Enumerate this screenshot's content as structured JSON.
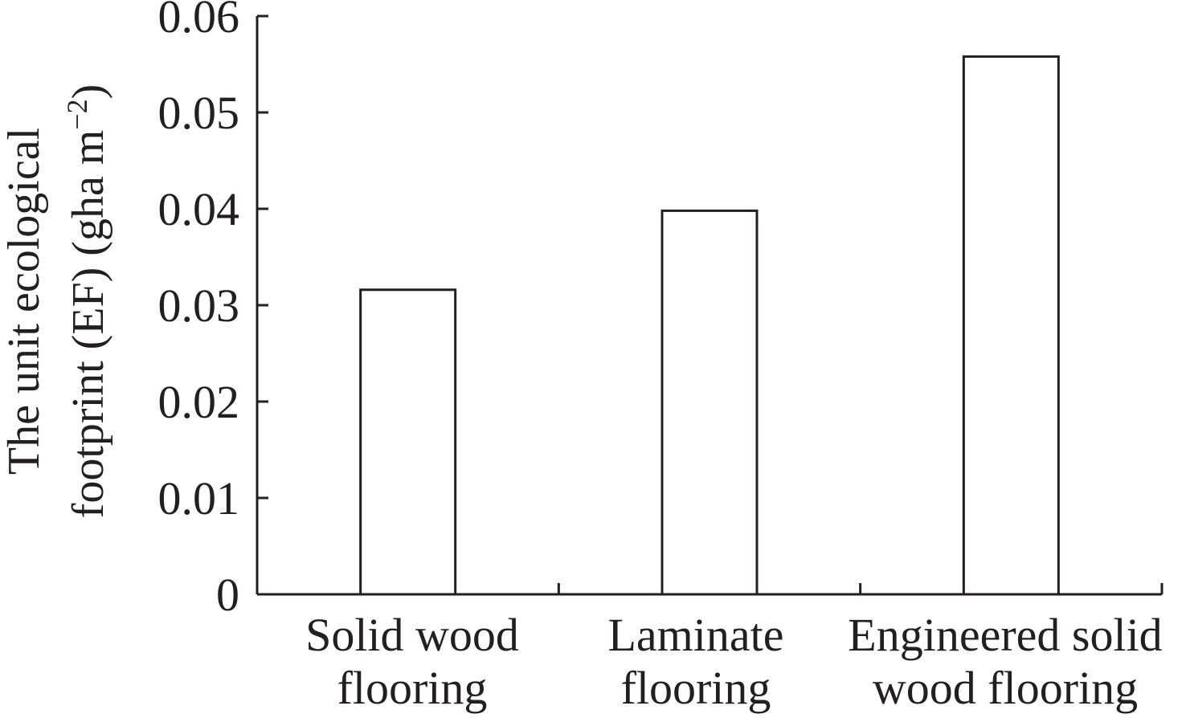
{
  "chart_data": {
    "type": "bar",
    "title": "",
    "categories": [
      [
        "Solid wood",
        "flooring"
      ],
      [
        "Laminate",
        "flooring"
      ],
      [
        "Engineered solid",
        "wood flooring"
      ]
    ],
    "values": [
      0.0316,
      0.0398,
      0.0558
    ],
    "ylabel": {
      "line1": "The unit ecological",
      "line2": "footprint (EF) (gha m",
      "superscript": "−2",
      "closing": ")"
    },
    "ylim": [
      0,
      0.06
    ],
    "yticks": [
      "0",
      "0.01",
      "0.02",
      "0.03",
      "0.04",
      "0.05",
      "0.06"
    ],
    "grid": false,
    "legend": "none",
    "bar_fill": "#ffffff",
    "stroke_color": "#231f20"
  }
}
